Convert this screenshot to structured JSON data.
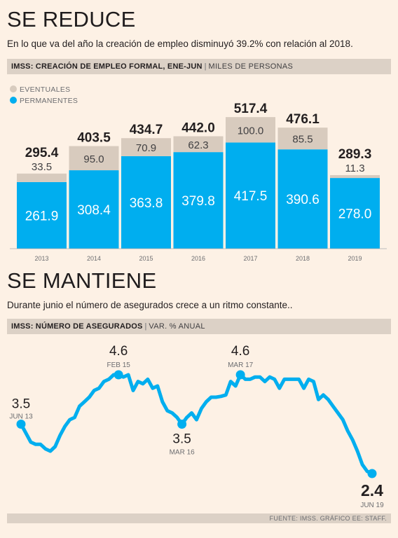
{
  "section1": {
    "title": "SE REDUCE",
    "subtitle": "En lo que va del año la creación de empleo disminuyó 39.2% con relación al 2018.",
    "band_bold": "IMSS: CREACIÓN DE EMPLEO FORMAL, ENE-JUN",
    "band_sep": "|",
    "band_unit": "MILES DE PERSONAS"
  },
  "section2": {
    "title": "SE MANTIENE",
    "subtitle": "Durante junio el número de asegurados crece a un ritmo constante..",
    "band_bold": "IMSS: NÚMERO DE ASEGURADOS",
    "band_sep": "|",
    "band_unit": "VAR. % ANUAL"
  },
  "footer": "FUENTE: IMSS. GRÁFICO EE: STAFF.",
  "colors": {
    "permanentes": "#00aeef",
    "eventuales": "#d8cbbe",
    "line": "#00aeef",
    "band": "#dcd1c6",
    "background": "#fdf1e5"
  },
  "chart_data": [
    {
      "type": "bar",
      "stacked": true,
      "categories": [
        "2013",
        "2014",
        "2015",
        "2016",
        "2017",
        "2018",
        "2019"
      ],
      "series": [
        {
          "name": "PERMANENTES",
          "values": [
            261.9,
            308.4,
            363.8,
            379.8,
            417.5,
            390.6,
            278.0
          ],
          "labels": [
            "261.9",
            "308.4",
            "363.8",
            "379.8",
            "417.5",
            "390.6",
            "278.0"
          ]
        },
        {
          "name": "EVENTUALES",
          "values": [
            33.5,
            95.0,
            70.9,
            62.3,
            100.0,
            85.5,
            11.3
          ],
          "labels": [
            "33.5",
            "95.0",
            "70.9",
            "62.3",
            "100.0",
            "85.5",
            "11.3"
          ]
        }
      ],
      "totals": [
        295.4,
        403.5,
        434.7,
        442.0,
        517.4,
        476.1,
        289.3
      ],
      "total_labels": [
        "295.4",
        "403.5",
        "434.7",
        "442.0",
        "517.4",
        "476.1",
        "289.3"
      ],
      "legend_position": "top-left",
      "ylim": [
        0,
        600
      ],
      "grid": false
    },
    {
      "type": "line",
      "series": [
        {
          "name": "",
          "x": [
            "2013-06",
            "2013-07",
            "2013-08",
            "2013-09",
            "2013-10",
            "2013-11",
            "2013-12",
            "2014-01",
            "2014-02",
            "2014-03",
            "2014-04",
            "2014-05",
            "2014-06",
            "2014-07",
            "2014-08",
            "2014-09",
            "2014-10",
            "2014-11",
            "2014-12",
            "2015-01",
            "2015-02",
            "2015-03",
            "2015-04",
            "2015-05",
            "2015-06",
            "2015-07",
            "2015-08",
            "2015-09",
            "2015-10",
            "2015-11",
            "2015-12",
            "2016-01",
            "2016-02",
            "2016-03",
            "2016-04",
            "2016-05",
            "2016-06",
            "2016-07",
            "2016-08",
            "2016-09",
            "2016-10",
            "2016-11",
            "2016-12",
            "2017-01",
            "2017-02",
            "2017-03",
            "2017-04",
            "2017-05",
            "2017-06",
            "2017-07",
            "2017-08",
            "2017-09",
            "2017-10",
            "2017-11",
            "2017-12",
            "2018-01",
            "2018-02",
            "2018-03",
            "2018-04",
            "2018-05",
            "2018-06",
            "2018-07",
            "2018-08",
            "2018-09",
            "2018-10",
            "2018-11",
            "2018-12",
            "2019-01",
            "2019-02",
            "2019-03",
            "2019-04",
            "2019-05",
            "2019-06"
          ],
          "y": [
            3.5,
            3.3,
            3.1,
            3.05,
            3.05,
            2.95,
            2.9,
            3.0,
            3.25,
            3.45,
            3.6,
            3.65,
            3.9,
            4.0,
            4.1,
            4.25,
            4.3,
            4.45,
            4.5,
            4.6,
            4.6,
            4.55,
            4.6,
            4.25,
            4.45,
            4.4,
            4.5,
            4.3,
            4.35,
            4.0,
            3.8,
            3.75,
            3.65,
            3.5,
            3.65,
            3.75,
            3.6,
            3.85,
            4.0,
            4.1,
            4.1,
            4.12,
            4.15,
            4.45,
            4.35,
            4.6,
            4.5,
            4.5,
            4.55,
            4.55,
            4.45,
            4.55,
            4.5,
            4.3,
            4.5,
            4.5,
            4.5,
            4.5,
            4.3,
            4.5,
            4.45,
            4.05,
            4.15,
            4.05,
            3.9,
            3.75,
            3.6,
            3.35,
            3.15,
            2.9,
            2.6,
            2.45,
            2.4
          ]
        }
      ],
      "annotations": [
        {
          "x": "2013-06",
          "value": "3.5",
          "date": "JUN 13",
          "marker": true
        },
        {
          "x": "2015-02",
          "value": "4.6",
          "date": "FEB 15",
          "marker": true
        },
        {
          "x": "2016-03",
          "value": "3.5",
          "date": "MAR 16",
          "marker": true
        },
        {
          "x": "2017-03",
          "value": "4.6",
          "date": "MAR 17",
          "marker": true
        },
        {
          "x": "2019-06",
          "value": "2.4",
          "date": "JUN 19",
          "marker": true,
          "emphasis": true
        }
      ],
      "ylim": [
        2.2,
        4.9
      ],
      "grid": false
    }
  ]
}
